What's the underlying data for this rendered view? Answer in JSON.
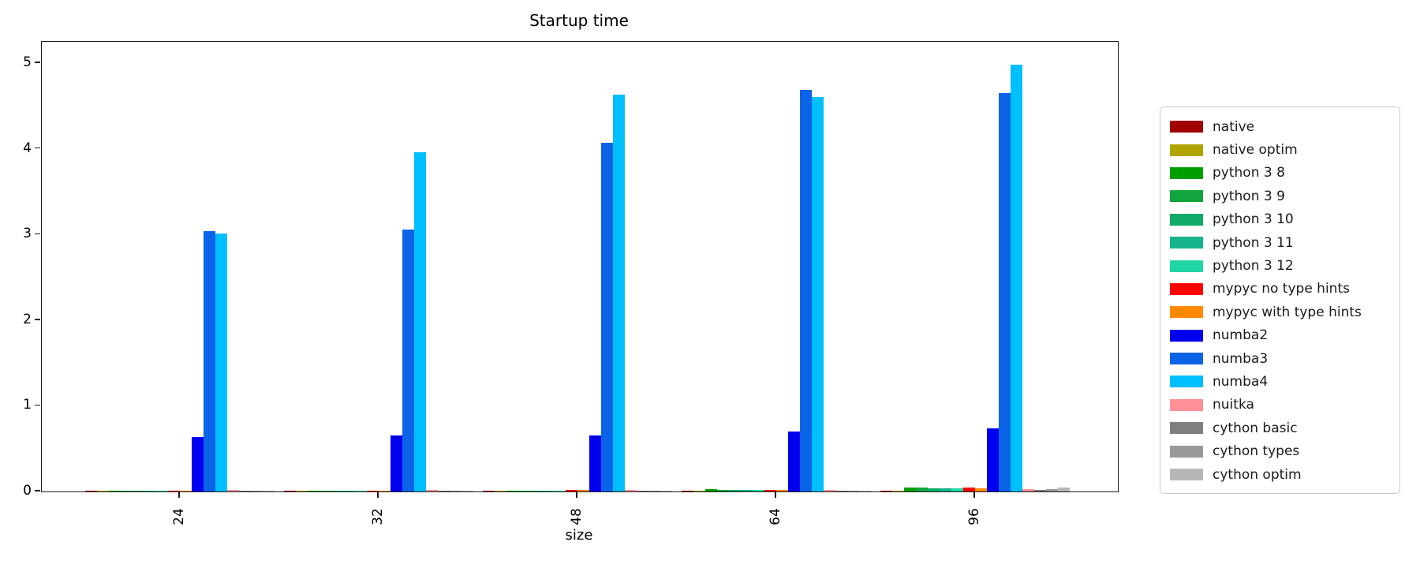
{
  "chart_data": {
    "type": "bar",
    "title": "Startup time",
    "xlabel": "size",
    "ylabel": "",
    "categories": [
      "24",
      "32",
      "48",
      "64",
      "96"
    ],
    "yticks": [
      0,
      1,
      2,
      3,
      4,
      5
    ],
    "ylim": [
      0,
      5.25
    ],
    "grid": false,
    "legend_position": "right-outside",
    "series": [
      {
        "name": "native",
        "color": "#a00000",
        "values": [
          0.005,
          0.005,
          0.005,
          0.01,
          0.01
        ]
      },
      {
        "name": "native optim",
        "color": "#b0a500",
        "values": [
          0.005,
          0.005,
          0.005,
          0.01,
          0.01
        ]
      },
      {
        "name": "python 3 8",
        "color": "#009f00",
        "values": [
          0.01,
          0.01,
          0.01,
          0.025,
          0.05
        ]
      },
      {
        "name": "python 3 9",
        "color": "#12a53e",
        "values": [
          0.01,
          0.01,
          0.01,
          0.02,
          0.045
        ]
      },
      {
        "name": "python 3 10",
        "color": "#0fab66",
        "values": [
          0.01,
          0.01,
          0.01,
          0.02,
          0.04
        ]
      },
      {
        "name": "python 3 11",
        "color": "#16b28a",
        "values": [
          0.01,
          0.01,
          0.01,
          0.02,
          0.04
        ]
      },
      {
        "name": "python 3 12",
        "color": "#1fd6a4",
        "values": [
          0.01,
          0.01,
          0.01,
          0.02,
          0.04
        ]
      },
      {
        "name": "mypyc no type hints",
        "color": "#ff0000",
        "values": [
          0.01,
          0.01,
          0.015,
          0.02,
          0.05
        ]
      },
      {
        "name": "mypyc with type hints",
        "color": "#ff8a00",
        "values": [
          0.01,
          0.01,
          0.015,
          0.02,
          0.04
        ]
      },
      {
        "name": "numba2",
        "color": "#0000ee",
        "values": [
          0.64,
          0.65,
          0.65,
          0.7,
          0.74
        ]
      },
      {
        "name": "numba3",
        "color": "#0b63e8",
        "values": [
          3.04,
          3.06,
          4.07,
          4.69,
          4.65
        ]
      },
      {
        "name": "numba4",
        "color": "#00bfff",
        "values": [
          3.01,
          3.96,
          4.63,
          4.61,
          4.98
        ]
      },
      {
        "name": "nuitka",
        "color": "#ff8f96",
        "values": [
          0.015,
          0.015,
          0.015,
          0.02,
          0.03
        ]
      },
      {
        "name": "cython basic",
        "color": "#7f7f7f",
        "values": [
          0.005,
          0.005,
          0.005,
          0.01,
          0.02
        ]
      },
      {
        "name": "cython types",
        "color": "#999999",
        "values": [
          0.005,
          0.005,
          0.005,
          0.01,
          0.03
        ]
      },
      {
        "name": "cython optim",
        "color": "#b7b7b7",
        "values": [
          0.005,
          0.005,
          0.005,
          0.01,
          0.05
        ]
      }
    ]
  }
}
